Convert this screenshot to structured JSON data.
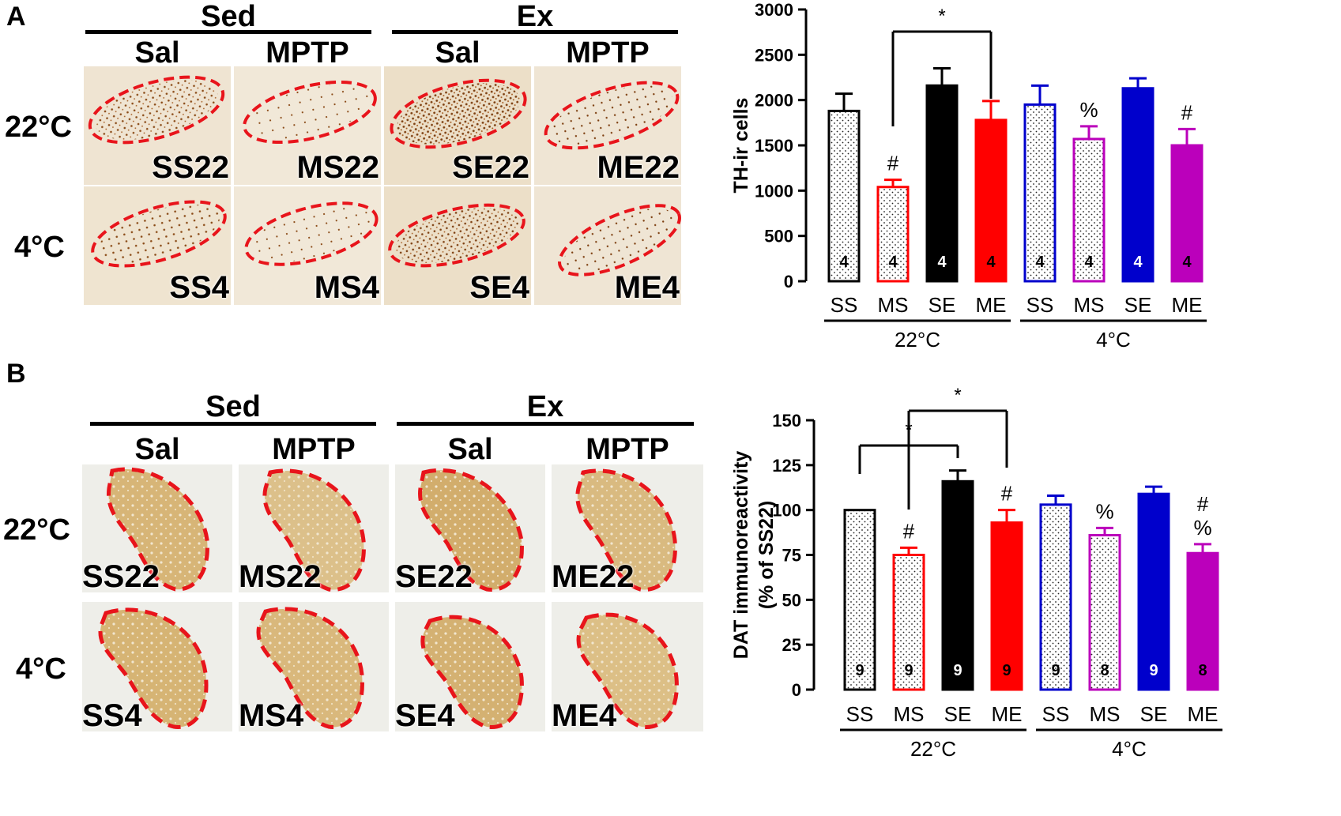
{
  "panel_a": {
    "letter": "A",
    "group_headers": [
      "Sed",
      "Ex"
    ],
    "treatment_headers": [
      "Sal",
      "MPTP",
      "Sal",
      "MPTP"
    ],
    "row_labels": [
      "22°C",
      "4°C"
    ],
    "tiles": [
      "SS22",
      "MS22",
      "SE22",
      "ME22",
      "SS4",
      "MS4",
      "SE4",
      "ME4"
    ]
  },
  "panel_b": {
    "letter": "B",
    "group_headers": [
      "Sed",
      "Ex"
    ],
    "treatment_headers": [
      "Sal",
      "MPTP",
      "Sal",
      "MPTP"
    ],
    "row_labels": [
      "22°C",
      "4°C"
    ],
    "tiles": [
      "SS22",
      "MS22",
      "SE22",
      "ME22",
      "SS4",
      "MS4",
      "SE4",
      "ME4"
    ]
  },
  "colors": {
    "outline": "#e8141b",
    "tissue_a": "#efe3cf",
    "tissue_b": "#d8b77a",
    "black": "#000000",
    "red": "#ff0000",
    "blue": "#0000cc",
    "magenta": "#bb00bb"
  },
  "chart_data": [
    {
      "type": "bar",
      "title": "",
      "ylabel": "TH-ir cells",
      "xlabel": "",
      "ylim": [
        0,
        3000
      ],
      "yticks": [
        0,
        500,
        1000,
        1500,
        2000,
        2500,
        3000
      ],
      "categories": [
        "SS",
        "MS",
        "SE",
        "ME",
        "SS",
        "MS",
        "SE",
        "ME"
      ],
      "groups": [
        {
          "label": "22°C",
          "members": [
            0,
            1,
            2,
            3
          ]
        },
        {
          "label": "4°C",
          "members": [
            4,
            5,
            6,
            7
          ]
        }
      ],
      "values": [
        1880,
        1040,
        2160,
        1780,
        1950,
        1570,
        2130,
        1500
      ],
      "errors": [
        190,
        80,
        190,
        210,
        210,
        140,
        110,
        180
      ],
      "n": [
        "4",
        "4",
        "4",
        "4",
        "4",
        "4",
        "4",
        "4"
      ],
      "markers": [
        "",
        "#",
        "",
        "",
        "",
        "%",
        "",
        "#"
      ],
      "significance": [
        {
          "from": 1,
          "to": 3,
          "label": "*"
        }
      ]
    },
    {
      "type": "bar",
      "title": "",
      "ylabel": "DAT immunoreactivity",
      "ylabel2": "(% of SS22)",
      "xlabel": "",
      "ylim": [
        0,
        150
      ],
      "yticks": [
        0,
        25,
        50,
        75,
        100,
        125,
        150
      ],
      "categories": [
        "SS",
        "MS",
        "SE",
        "ME",
        "SS",
        "MS",
        "SE",
        "ME"
      ],
      "groups": [
        {
          "label": "22°C",
          "members": [
            0,
            1,
            2,
            3
          ]
        },
        {
          "label": "4°C",
          "members": [
            4,
            5,
            6,
            7
          ]
        }
      ],
      "values": [
        100,
        75,
        116,
        93,
        103,
        86,
        109,
        76
      ],
      "errors": [
        0,
        4,
        6,
        7,
        5,
        4,
        4,
        5
      ],
      "n": [
        "9",
        "9",
        "9",
        "9",
        "9",
        "8",
        "9",
        "8"
      ],
      "markers": [
        "",
        "#",
        "",
        "#",
        "",
        "%",
        "",
        "#%"
      ],
      "significance": [
        {
          "from": 0,
          "to": 2,
          "label": "*"
        },
        {
          "from": 1,
          "to": 3,
          "label": "*"
        }
      ]
    }
  ]
}
